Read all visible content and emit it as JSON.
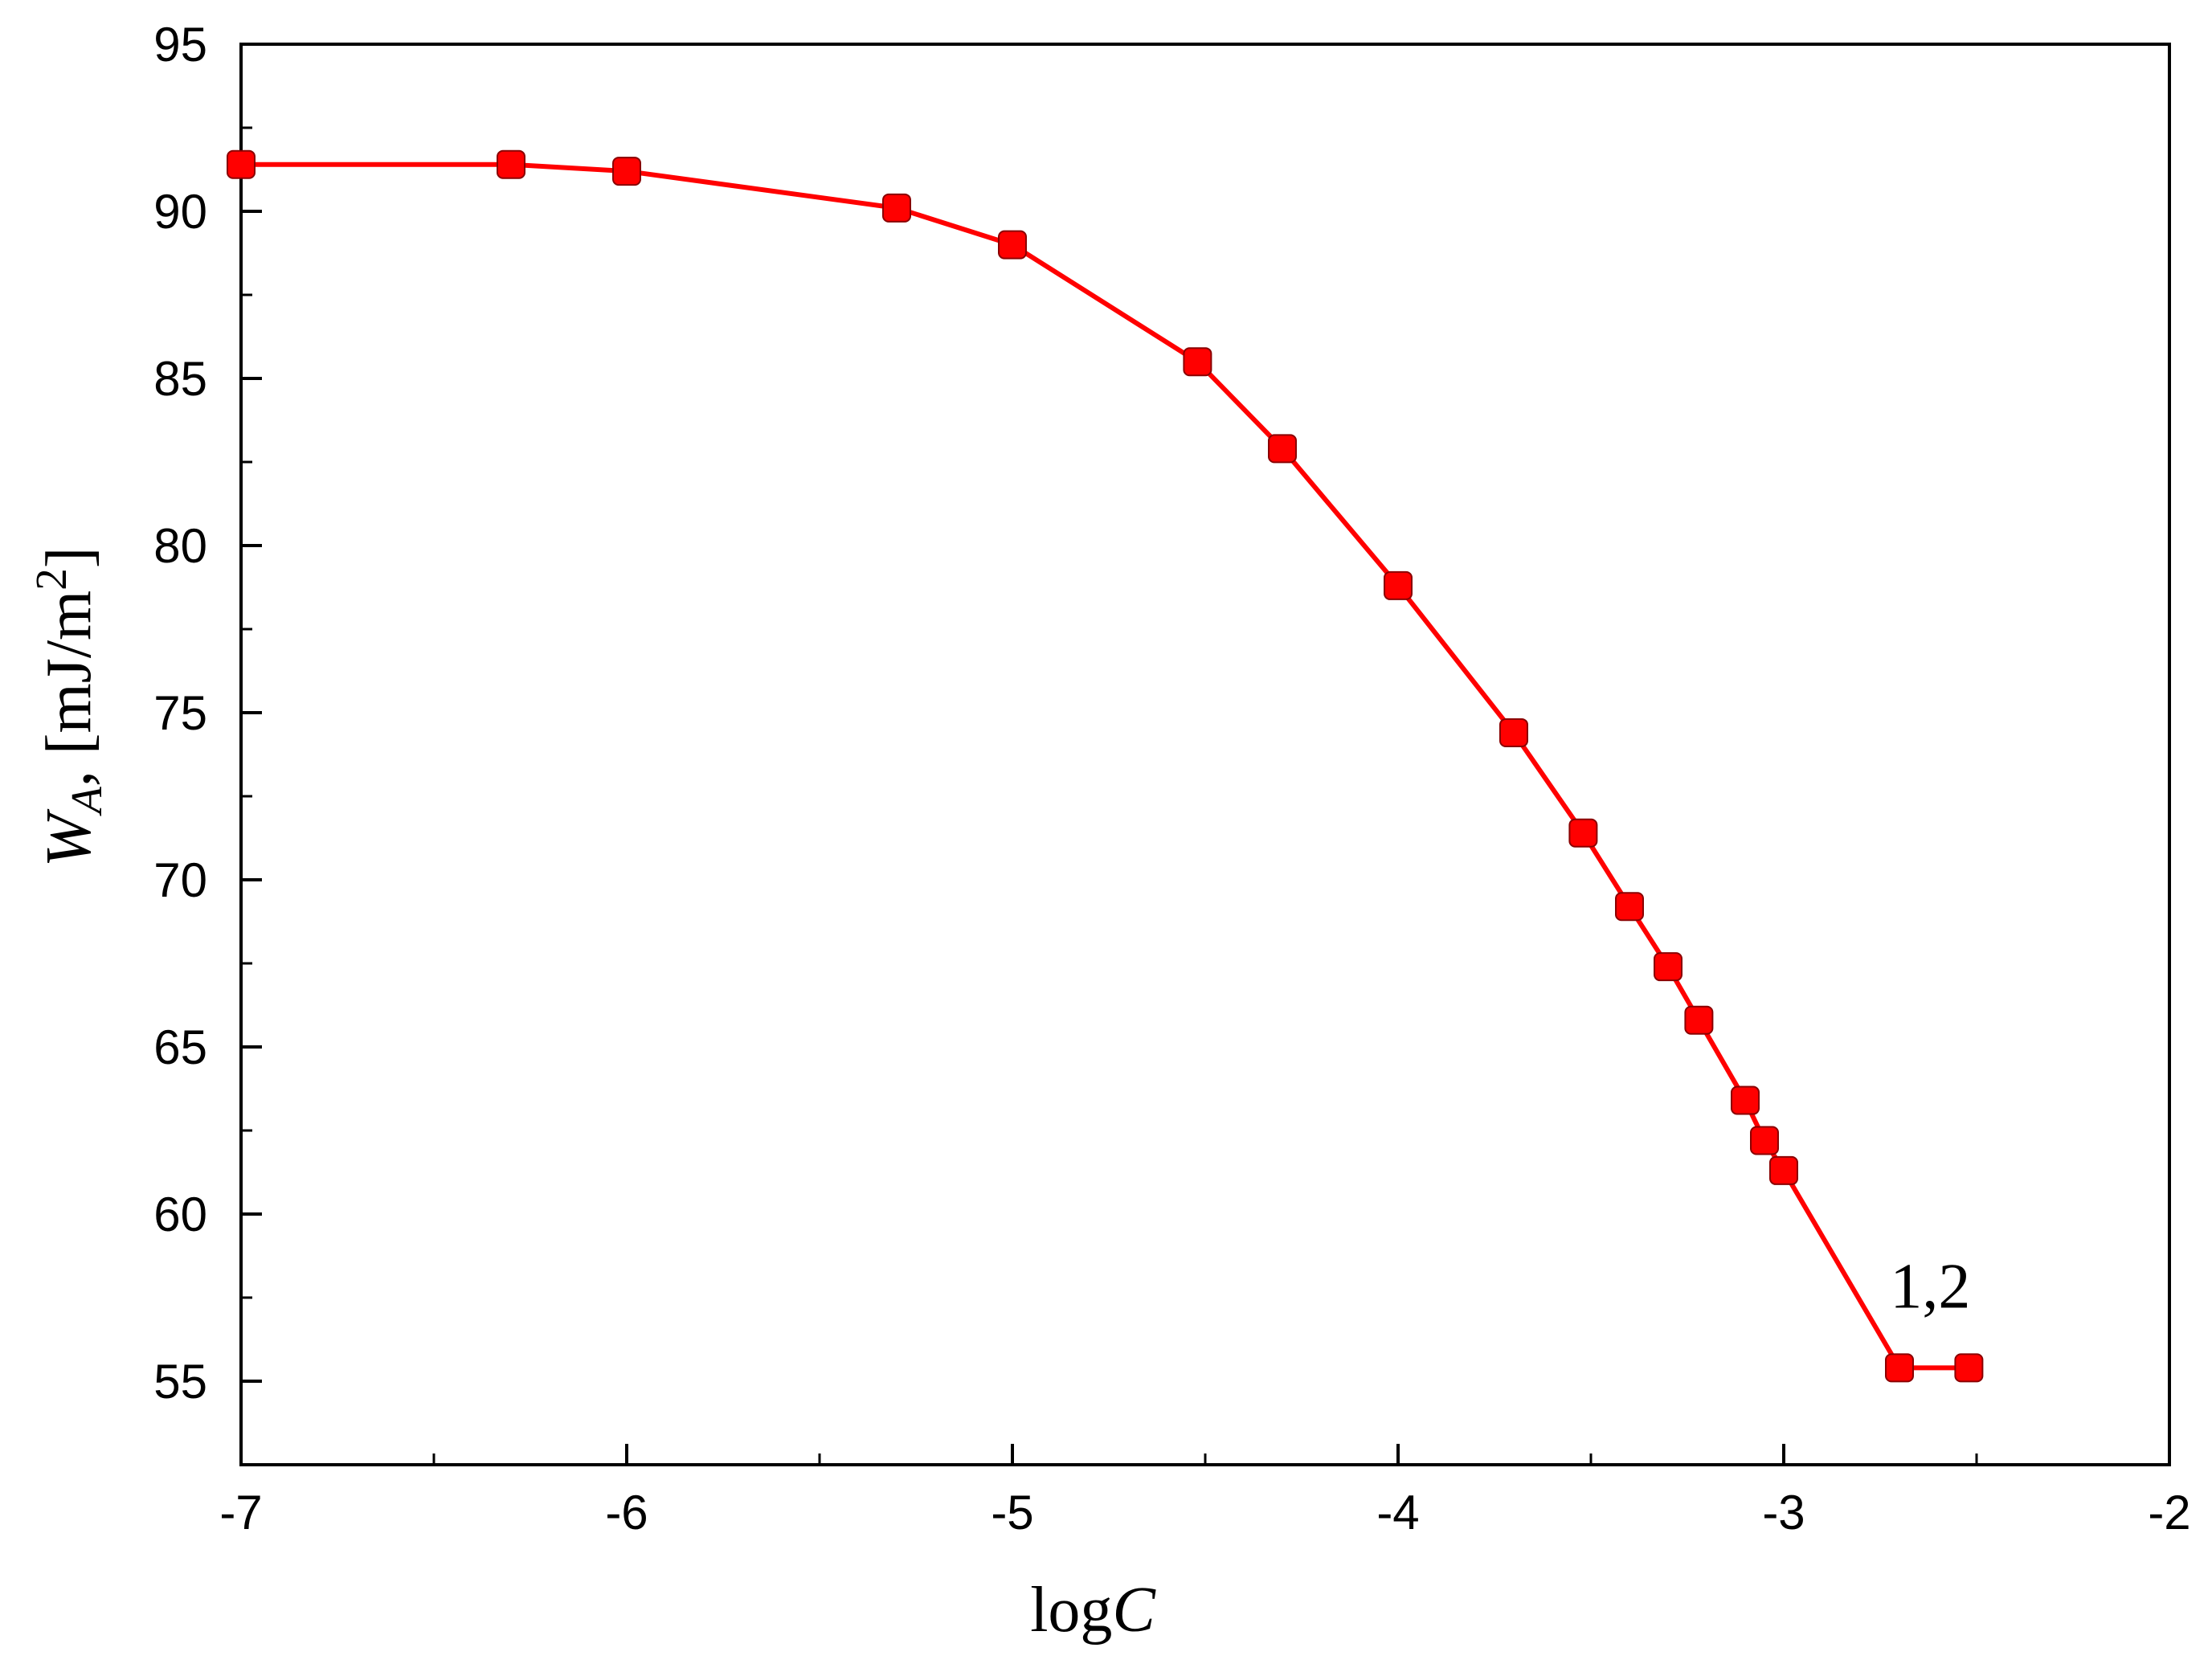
{
  "chart_data": {
    "type": "line",
    "title": "",
    "xlabel": {
      "prefix": "log",
      "var": "C"
    },
    "ylabel": {
      "var": "W",
      "sub": "A",
      "unit": ", [mJ/m",
      "sup": "2",
      "close": "]"
    },
    "xlim": [
      -7,
      -2
    ],
    "ylim": [
      52.5,
      95
    ],
    "x_ticks": [
      -7,
      -6,
      -5,
      -4,
      -3,
      -2
    ],
    "x_tick_labels": [
      "-7",
      "-6",
      "-5",
      "-4",
      "-3",
      "-2"
    ],
    "x_minor_step": 0.5,
    "y_ticks": [
      55,
      60,
      65,
      70,
      75,
      80,
      85,
      90,
      95
    ],
    "y_tick_labels": [
      "55",
      "60",
      "65",
      "70",
      "75",
      "80",
      "85",
      "90",
      "95"
    ],
    "y_minor_step": 2.5,
    "grid": false,
    "series": [
      {
        "name": "1,2",
        "color": "#ff0000",
        "marker": "square",
        "x": [
          -7.0,
          -6.3,
          -6.0,
          -5.3,
          -5.0,
          -4.52,
          -4.3,
          -4.0,
          -3.7,
          -3.52,
          -3.4,
          -3.3,
          -3.22,
          -3.1,
          -3.05,
          -3.0,
          -2.7,
          -2.52
        ],
        "y": [
          91.4,
          91.4,
          91.2,
          90.1,
          89.0,
          85.5,
          82.9,
          78.8,
          74.4,
          71.4,
          69.2,
          67.4,
          65.8,
          63.4,
          62.2,
          61.3,
          55.4,
          55.4
        ]
      }
    ],
    "annotations": [
      {
        "text": "1,2",
        "x": -2.62,
        "y": 57.2
      }
    ]
  }
}
